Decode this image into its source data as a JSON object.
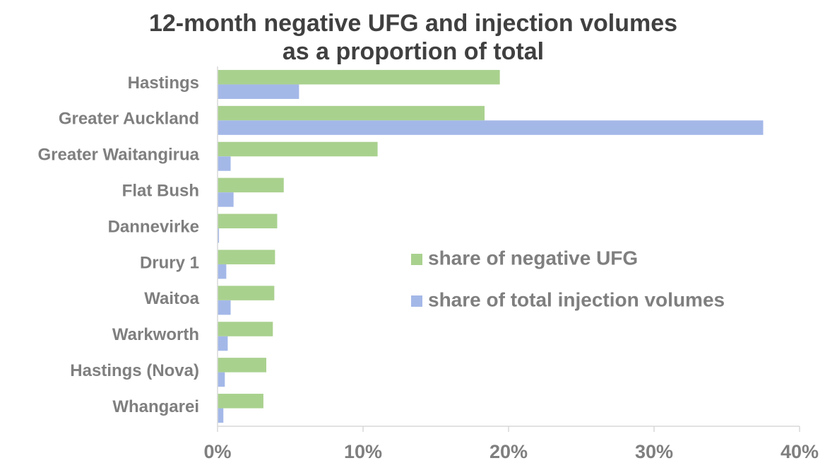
{
  "chart_data": {
    "type": "barh",
    "title": [
      "12-month negative UFG and injection volumes",
      "as a proportion of total"
    ],
    "categories": [
      "Hastings",
      "Greater Auckland",
      "Greater Waitangirua",
      "Flat Bush",
      "Dannevirke",
      "Drury 1",
      "Waitoa",
      "Warkworth",
      "Hastings (Nova)",
      "Whangarei"
    ],
    "series": [
      {
        "name": "share of negative UFG",
        "color": "#a9d18e",
        "values": [
          19.4,
          18.35,
          11.0,
          4.55,
          4.1,
          3.95,
          3.9,
          3.8,
          3.35,
          3.15
        ]
      },
      {
        "name": "share of total injection volumes",
        "color": "#a4b8e8",
        "values": [
          5.6,
          37.5,
          0.9,
          1.1,
          0.1,
          0.6,
          0.9,
          0.7,
          0.5,
          0.4
        ]
      }
    ],
    "xlim": [
      0,
      40
    ],
    "xticks": [
      {
        "value": 0,
        "label": "0%"
      },
      {
        "value": 10,
        "label": "10%"
      },
      {
        "value": 20,
        "label": "20%"
      },
      {
        "value": 30,
        "label": "30%"
      },
      {
        "value": 40,
        "label": "40%"
      }
    ],
    "legend": "center right"
  }
}
